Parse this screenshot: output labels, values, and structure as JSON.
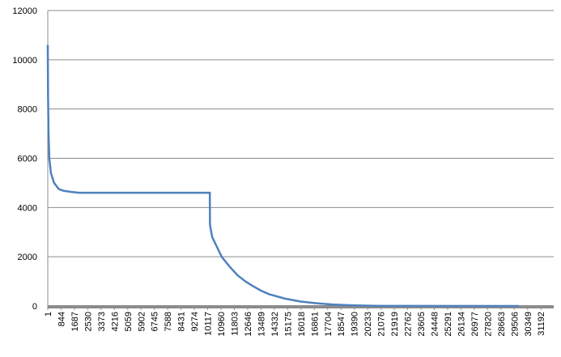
{
  "chart_data": {
    "type": "line",
    "x": [
      1,
      20,
      50,
      100,
      200,
      400,
      700,
      1000,
      1500,
      2000,
      10250,
      10260,
      10400,
      10700,
      11000,
      11500,
      12000,
      12500,
      13000,
      13500,
      14000,
      15000,
      16000,
      17000,
      18000,
      19000,
      20000,
      21000,
      29800
    ],
    "series": [
      {
        "color": "#4f81bd",
        "values": [
          10600,
          8500,
          7000,
          6000,
          5400,
          5000,
          4750,
          4680,
          4630,
          4600,
          4600,
          3300,
          2800,
          2400,
          2000,
          1600,
          1250,
          1000,
          800,
          620,
          480,
          300,
          180,
          110,
          60,
          35,
          15,
          5,
          0
        ]
      }
    ],
    "xlim": [
      1,
      32000
    ],
    "xticks": [
      1,
      844,
      1687,
      2530,
      3373,
      4216,
      5059,
      5902,
      6745,
      7588,
      8431,
      9274,
      10117,
      10960,
      11803,
      12646,
      13489,
      14332,
      15175,
      16018,
      16861,
      17704,
      18547,
      19390,
      20233,
      21076,
      21919,
      22762,
      23605,
      24448,
      25291,
      26134,
      26977,
      27820,
      28663,
      29506,
      30349,
      31192
    ],
    "ylim": [
      0,
      12000
    ],
    "yticks": [
      0,
      2000,
      4000,
      6000,
      8000,
      10000,
      12000
    ],
    "grid": true
  }
}
